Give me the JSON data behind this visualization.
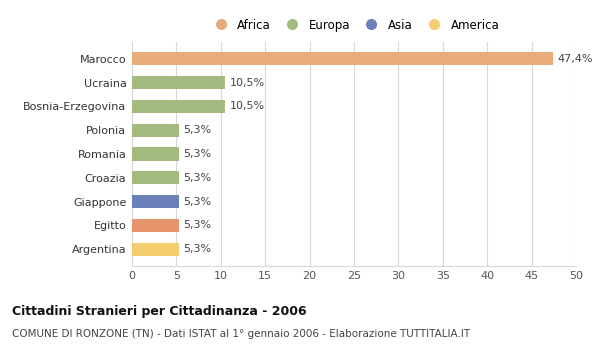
{
  "categories": [
    "Argentina",
    "Egitto",
    "Giappone",
    "Croazia",
    "Romania",
    "Polonia",
    "Bosnia-Erzegovina",
    "Ucraina",
    "Marocco"
  ],
  "values": [
    5.3,
    5.3,
    5.3,
    5.3,
    5.3,
    5.3,
    10.5,
    10.5,
    47.4
  ],
  "labels": [
    "5,3%",
    "5,3%",
    "5,3%",
    "5,3%",
    "5,3%",
    "5,3%",
    "10,5%",
    "10,5%",
    "47,4%"
  ],
  "colors": [
    "#f5cc6e",
    "#e8956d",
    "#6b80b8",
    "#a3bb7e",
    "#a3bb7e",
    "#a3bb7e",
    "#a3bb7e",
    "#a3bb7e",
    "#e8ac7a"
  ],
  "legend": [
    {
      "label": "Africa",
      "color": "#e8ac7a"
    },
    {
      "label": "Europa",
      "color": "#a3bb7e"
    },
    {
      "label": "Asia",
      "color": "#6b80b8"
    },
    {
      "label": "America",
      "color": "#f5cc6e"
    }
  ],
  "title": "Cittadini Stranieri per Cittadinanza - 2006",
  "subtitle": "COMUNE DI RONZONE (TN) - Dati ISTAT al 1° gennaio 2006 - Elaborazione TUTTITALIA.IT",
  "xlim": [
    0,
    50
  ],
  "xticks": [
    0,
    5,
    10,
    15,
    20,
    25,
    30,
    35,
    40,
    45,
    50
  ],
  "background_color": "#ffffff",
  "grid_color": "#d8d8d8",
  "bar_height": 0.55
}
